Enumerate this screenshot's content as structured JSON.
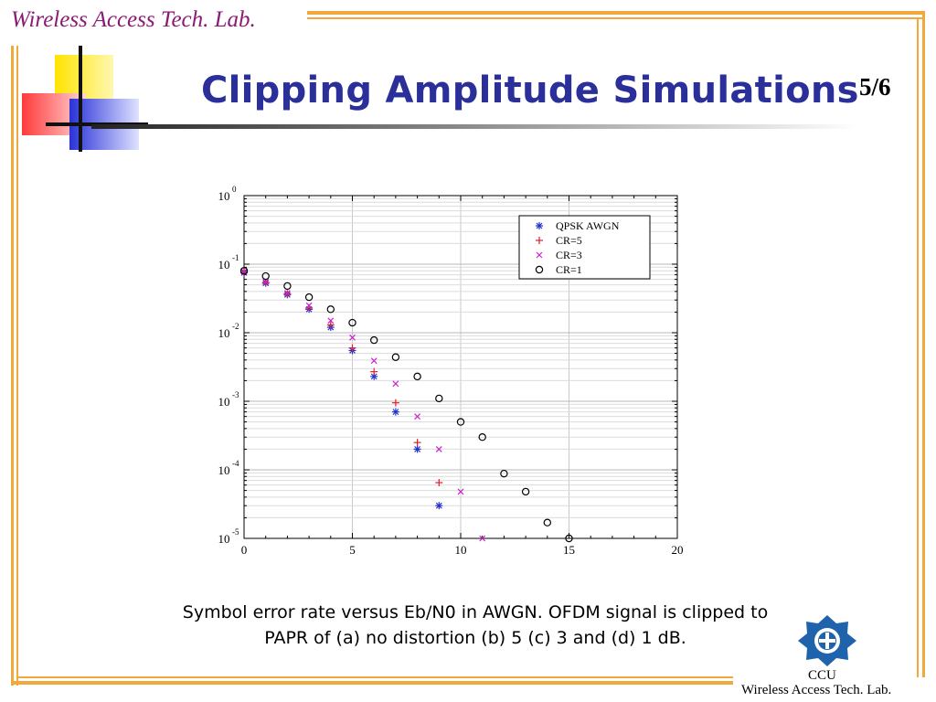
{
  "header": {
    "lab_name": "Wireless Access Tech. Lab.",
    "title": "Clipping Amplitude Simulations",
    "page_number": "5/6"
  },
  "caption": {
    "line1": "Symbol error rate versus Eb/N0 in AWGN. OFDM signal is clipped to",
    "line2": "PAPR of (a) no distortion (b) 5 (c) 3 and (d) 1 dB."
  },
  "footer": {
    "org": "CCU",
    "lab_name": "Wireless Access Tech. Lab."
  },
  "colors": {
    "frame": "#f2a93b",
    "title": "#2b2f9a",
    "lab_name": "#8a1a74",
    "qpsk": "#2233cc",
    "cr5": "#e0202a",
    "cr3": "#cc22cc",
    "cr1": "#000000",
    "logo": "#1f63ad"
  },
  "chart_data": {
    "type": "scatter",
    "title": "",
    "xlabel": "",
    "ylabel": "",
    "xlim": [
      0,
      20
    ],
    "ylim": [
      1e-05,
      1
    ],
    "yscale": "log",
    "grid": true,
    "legend_position": "top-right",
    "x_ticks": [
      "0",
      "5",
      "10",
      "15",
      "20"
    ],
    "y_ticks": [
      {
        "base": "10",
        "exp": "0"
      },
      {
        "base": "10",
        "exp": "-1"
      },
      {
        "base": "10",
        "exp": "-2"
      },
      {
        "base": "10",
        "exp": "-3"
      },
      {
        "base": "10",
        "exp": "-4"
      },
      {
        "base": "10",
        "exp": "-5"
      }
    ],
    "series": [
      {
        "name": "QPSK AWGN",
        "marker": "asterisk",
        "x": [
          0,
          1,
          2,
          3,
          4,
          5,
          6,
          7,
          8,
          9
        ],
        "y": [
          0.075,
          0.053,
          0.036,
          0.022,
          0.012,
          0.0055,
          0.0023,
          0.0007,
          0.0002,
          3e-05
        ]
      },
      {
        "name": "CR=5",
        "marker": "plus",
        "x": [
          0,
          1,
          2,
          3,
          4,
          5,
          6,
          7,
          8,
          9
        ],
        "y": [
          0.076,
          0.054,
          0.037,
          0.023,
          0.013,
          0.006,
          0.0027,
          0.00095,
          0.00025,
          6.5e-05
        ]
      },
      {
        "name": "CR=3",
        "marker": "cross",
        "x": [
          0,
          1,
          2,
          3,
          4,
          5,
          6,
          7,
          8,
          9,
          10,
          11
        ],
        "y": [
          0.078,
          0.055,
          0.038,
          0.025,
          0.015,
          0.0085,
          0.0039,
          0.0018,
          0.0006,
          0.0002,
          4.8e-05,
          1e-05
        ]
      },
      {
        "name": "CR=1",
        "marker": "circle",
        "x": [
          0,
          1,
          2,
          3,
          4,
          5,
          6,
          7,
          8,
          9,
          10,
          11,
          12,
          13,
          14,
          15
        ],
        "y": [
          0.08,
          0.067,
          0.048,
          0.033,
          0.022,
          0.014,
          0.0078,
          0.0044,
          0.0023,
          0.0011,
          0.0005,
          0.0003,
          8.8e-05,
          4.8e-05,
          1.7e-05,
          1e-05
        ]
      }
    ]
  }
}
